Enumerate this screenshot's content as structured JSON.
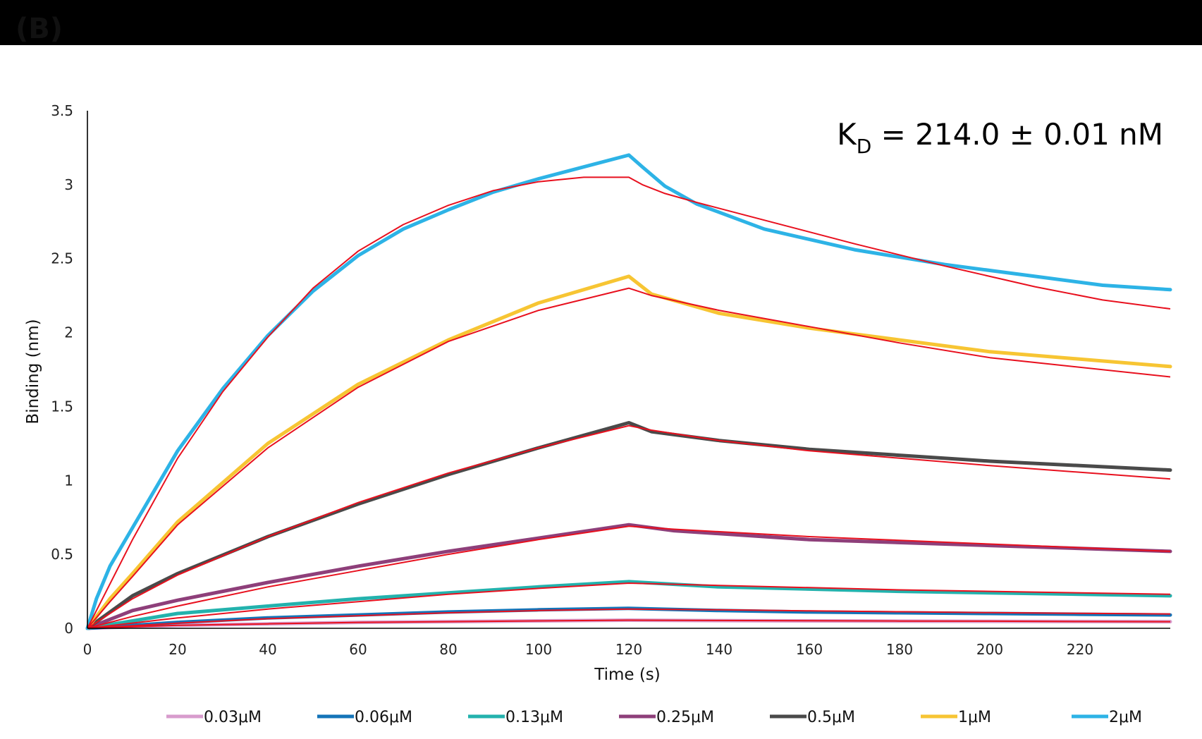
{
  "panel_label": "(B)",
  "chart_data": {
    "type": "line",
    "title": "",
    "annotation": {
      "k_letter": "K",
      "subscript": "D",
      "rest": " = 214.0 ± 0.01 nM"
    },
    "xlabel": "Time (s)",
    "ylabel": "Binding (nm)",
    "xlim": [
      0,
      240
    ],
    "ylim": [
      0,
      3.5
    ],
    "xticks": [
      0,
      20,
      40,
      60,
      80,
      100,
      120,
      140,
      160,
      180,
      200,
      220
    ],
    "xtick_labels": [
      "0",
      "20",
      "40",
      "60",
      "80",
      "100",
      "120",
      "140",
      "160",
      "180",
      "200",
      "220"
    ],
    "yticks": [
      0,
      0.5,
      1,
      1.5,
      2,
      2.5,
      3,
      3.5
    ],
    "ytick_labels": [
      "0",
      "0.5",
      "1",
      "1.5",
      "2",
      "2.5",
      "3",
      "3.5"
    ],
    "grid": false,
    "legend_position": "bottom",
    "fit_color": "#e8101e",
    "series": [
      {
        "name": "0.03μM",
        "color": "#d89ccd",
        "x": [
          0,
          20,
          40,
          60,
          80,
          100,
          120,
          140,
          160,
          180,
          200,
          220,
          240
        ],
        "y": [
          0,
          0.02,
          0.03,
          0.04,
          0.045,
          0.05,
          0.055,
          0.052,
          0.05,
          0.048,
          0.047,
          0.046,
          0.045
        ],
        "fit_y": [
          0,
          0.02,
          0.03,
          0.04,
          0.045,
          0.05,
          0.055,
          0.053,
          0.051,
          0.049,
          0.048,
          0.046,
          0.045
        ]
      },
      {
        "name": "0.06μM",
        "color": "#1474b8",
        "x": [
          0,
          20,
          40,
          60,
          80,
          100,
          120,
          140,
          160,
          180,
          200,
          220,
          240
        ],
        "y": [
          0,
          0.04,
          0.07,
          0.09,
          0.11,
          0.125,
          0.135,
          0.12,
          0.11,
          0.105,
          0.1,
          0.095,
          0.09
        ],
        "fit_y": [
          0,
          0.035,
          0.065,
          0.085,
          0.105,
          0.12,
          0.13,
          0.125,
          0.118,
          0.112,
          0.106,
          0.101,
          0.097
        ]
      },
      {
        "name": "0.13μM",
        "color": "#23b2ad",
        "x": [
          0,
          20,
          40,
          60,
          80,
          100,
          120,
          140,
          160,
          180,
          200,
          220,
          240
        ],
        "y": [
          0,
          0.1,
          0.15,
          0.2,
          0.24,
          0.28,
          0.315,
          0.28,
          0.265,
          0.25,
          0.24,
          0.23,
          0.22
        ],
        "fit_y": [
          0,
          0.07,
          0.13,
          0.18,
          0.23,
          0.27,
          0.305,
          0.29,
          0.275,
          0.26,
          0.25,
          0.24,
          0.23
        ]
      },
      {
        "name": "0.25μM",
        "color": "#8e3f7a",
        "x": [
          0,
          10,
          20,
          40,
          60,
          80,
          100,
          120,
          130,
          160,
          200,
          240
        ],
        "y": [
          0,
          0.12,
          0.19,
          0.31,
          0.42,
          0.52,
          0.61,
          0.7,
          0.66,
          0.6,
          0.56,
          0.52
        ],
        "fit_y": [
          0,
          0.08,
          0.15,
          0.28,
          0.39,
          0.5,
          0.6,
          0.69,
          0.67,
          0.62,
          0.57,
          0.52
        ]
      },
      {
        "name": "0.5μM",
        "color": "#4a4a4a",
        "x": [
          0,
          10,
          20,
          40,
          60,
          80,
          100,
          120,
          125,
          140,
          160,
          200,
          240
        ],
        "y": [
          0,
          0.22,
          0.37,
          0.62,
          0.84,
          1.04,
          1.22,
          1.39,
          1.33,
          1.27,
          1.21,
          1.13,
          1.07
        ],
        "fit_y": [
          0,
          0.2,
          0.36,
          0.62,
          0.85,
          1.05,
          1.22,
          1.37,
          1.34,
          1.27,
          1.2,
          1.1,
          1.01
        ]
      },
      {
        "name": "1μM",
        "color": "#f7c533",
        "x": [
          0,
          5,
          10,
          20,
          40,
          60,
          80,
          100,
          120,
          125,
          140,
          160,
          180,
          200,
          240
        ],
        "y": [
          0,
          0.2,
          0.37,
          0.72,
          1.25,
          1.65,
          1.95,
          2.2,
          2.38,
          2.26,
          2.13,
          2.03,
          1.95,
          1.87,
          1.77
        ],
        "fit_y": [
          0,
          0.18,
          0.35,
          0.7,
          1.22,
          1.63,
          1.94,
          2.15,
          2.3,
          2.25,
          2.15,
          2.04,
          1.93,
          1.83,
          1.7
        ]
      },
      {
        "name": "2μM",
        "color": "#2db3e6",
        "x": [
          0,
          2,
          5,
          10,
          20,
          30,
          40,
          50,
          60,
          70,
          80,
          90,
          100,
          110,
          120,
          123,
          128,
          135,
          150,
          170,
          190,
          210,
          225,
          240
        ],
        "y": [
          0,
          0.2,
          0.42,
          0.68,
          1.2,
          1.62,
          1.98,
          2.28,
          2.52,
          2.7,
          2.83,
          2.95,
          3.04,
          3.12,
          3.2,
          3.12,
          2.99,
          2.87,
          2.7,
          2.56,
          2.46,
          2.38,
          2.32,
          2.29
        ],
        "fit_y": [
          0,
          0.12,
          0.3,
          0.6,
          1.15,
          1.6,
          1.97,
          2.3,
          2.55,
          2.73,
          2.86,
          2.96,
          3.02,
          3.05,
          3.05,
          3.0,
          2.94,
          2.88,
          2.76,
          2.6,
          2.45,
          2.31,
          2.22,
          2.16
        ]
      }
    ]
  }
}
